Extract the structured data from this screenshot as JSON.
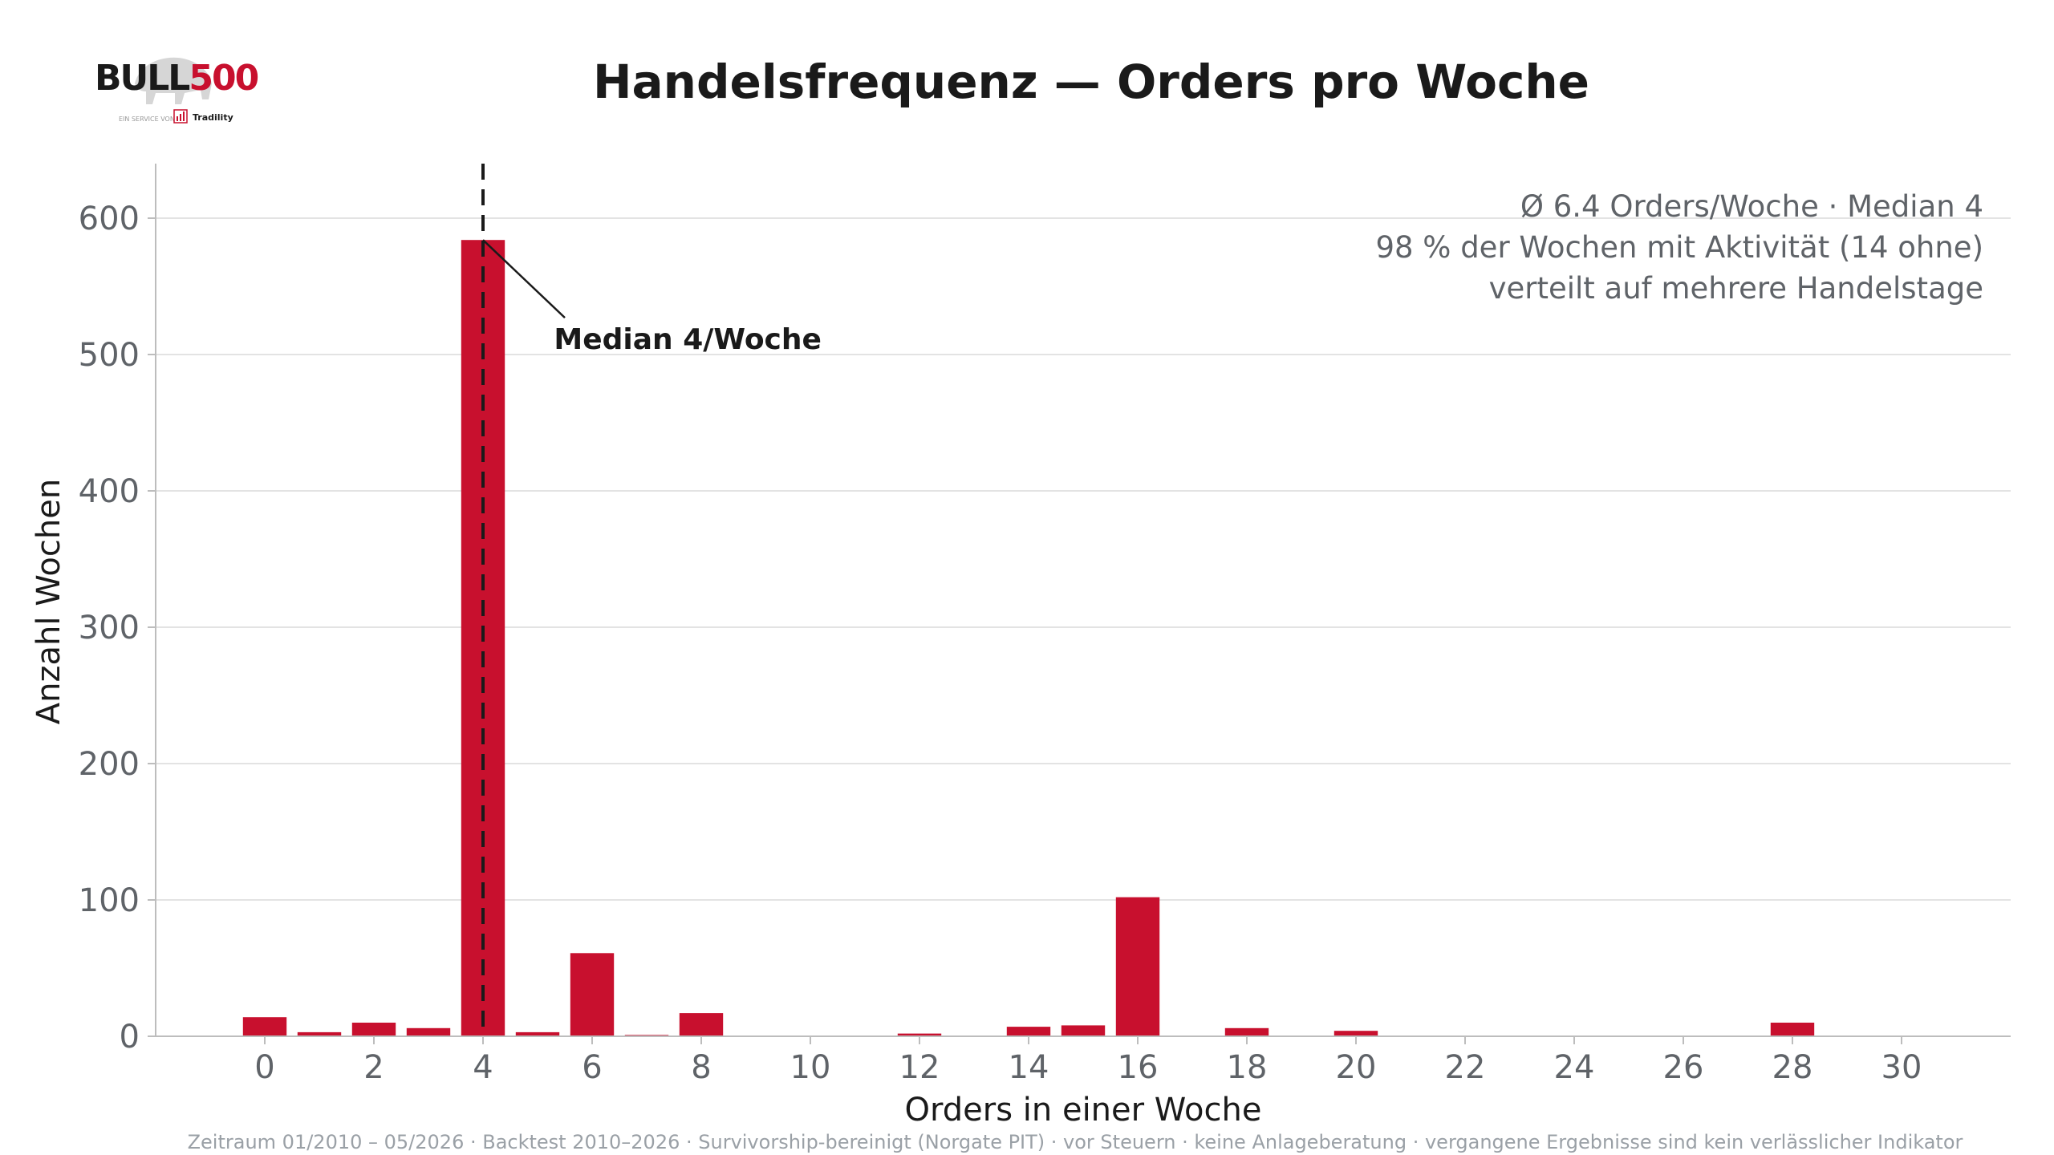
{
  "logo": {
    "brand_a": "BULL",
    "brand_b": "500",
    "tagline": "EIN SERVICE VON",
    "partner": "Tradility"
  },
  "colors": {
    "bar": "#c8102e",
    "text": "#1a1a1a",
    "muted": "#5f6368",
    "grid": "#e3e3e3",
    "footer": "#9aa0a6"
  },
  "chart_data": {
    "type": "bar",
    "title": "Handelsfrequenz — Orders pro Woche",
    "xlabel": "Orders in einer Woche",
    "ylabel": "Anzahl Wochen",
    "xlim": [
      -2,
      32
    ],
    "ylim": [
      0,
      640
    ],
    "x_ticks": [
      0,
      2,
      4,
      6,
      8,
      10,
      12,
      14,
      16,
      18,
      20,
      22,
      24,
      26,
      28,
      30
    ],
    "y_ticks": [
      0,
      100,
      200,
      300,
      400,
      500,
      600
    ],
    "grid": "horizontal",
    "x": [
      0,
      1,
      2,
      3,
      4,
      5,
      6,
      7,
      8,
      9,
      10,
      11,
      12,
      13,
      14,
      15,
      16,
      17,
      18,
      19,
      20,
      21,
      22,
      23,
      24,
      25,
      26,
      27,
      28,
      29,
      30,
      31
    ],
    "values": [
      14,
      3,
      10,
      6,
      584,
      3,
      61,
      1,
      17,
      0,
      0,
      0,
      2,
      0,
      7,
      8,
      102,
      0,
      6,
      0,
      4,
      0,
      0,
      0,
      0,
      0,
      0,
      0,
      10,
      0,
      0,
      0
    ],
    "median": 4,
    "annotation": "Median 4/Woche",
    "stats": [
      "Ø 6.4 Orders/Woche · Median 4",
      "98 % der Wochen mit Aktivität (14 ohne)",
      "verteilt auf mehrere Handelstage"
    ],
    "footer": "Zeitraum 01/2010 – 05/2026  ·  Backtest 2010–2026 · Survivorship-bereinigt (Norgate PIT) · vor Steuern · keine Anlageberatung · vergangene Ergebnisse sind kein verlässlicher Indikator"
  }
}
